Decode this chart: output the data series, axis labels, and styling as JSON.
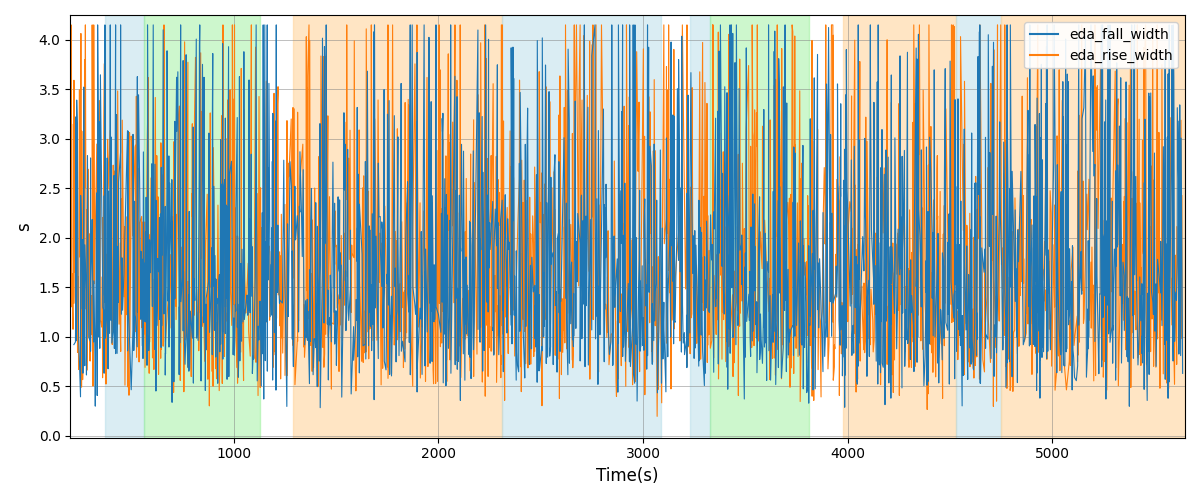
{
  "title": "",
  "xlabel": "Time(s)",
  "ylabel": "s",
  "xlim": [
    200,
    5650
  ],
  "ylim": [
    -0.02,
    4.25
  ],
  "yticks": [
    0.0,
    0.5,
    1.0,
    1.5,
    2.0,
    2.5,
    3.0,
    3.5,
    4.0
  ],
  "xticks": [
    1000,
    2000,
    3000,
    4000,
    5000
  ],
  "background_color": "#ffffff",
  "grid": true,
  "legend_labels": [
    "eda_fall_width",
    "eda_rise_width"
  ],
  "line_colors": [
    "#1f77b4",
    "#ff7f0e"
  ],
  "bands": [
    {
      "xmin": 370,
      "xmax": 560,
      "color": "#add8e6",
      "alpha": 0.45
    },
    {
      "xmin": 560,
      "xmax": 1130,
      "color": "#90ee90",
      "alpha": 0.45
    },
    {
      "xmin": 1130,
      "xmax": 1290,
      "color": "#ffffff",
      "alpha": 0.0
    },
    {
      "xmin": 1290,
      "xmax": 2310,
      "color": "#ffd59e",
      "alpha": 0.6
    },
    {
      "xmin": 2310,
      "xmax": 3090,
      "color": "#add8e6",
      "alpha": 0.45
    },
    {
      "xmin": 3090,
      "xmax": 3230,
      "color": "#ffffff",
      "alpha": 0.0
    },
    {
      "xmin": 3230,
      "xmax": 3330,
      "color": "#add8e6",
      "alpha": 0.45
    },
    {
      "xmin": 3330,
      "xmax": 3810,
      "color": "#90ee90",
      "alpha": 0.45
    },
    {
      "xmin": 3810,
      "xmax": 3980,
      "color": "#ffffff",
      "alpha": 0.0
    },
    {
      "xmin": 3980,
      "xmax": 4530,
      "color": "#ffd59e",
      "alpha": 0.6
    },
    {
      "xmin": 4530,
      "xmax": 4750,
      "color": "#add8e6",
      "alpha": 0.45
    },
    {
      "xmin": 4750,
      "xmax": 5650,
      "color": "#ffd59e",
      "alpha": 0.6
    }
  ],
  "seed": 42,
  "n_points": 2000,
  "time_start": 200,
  "time_end": 5640
}
